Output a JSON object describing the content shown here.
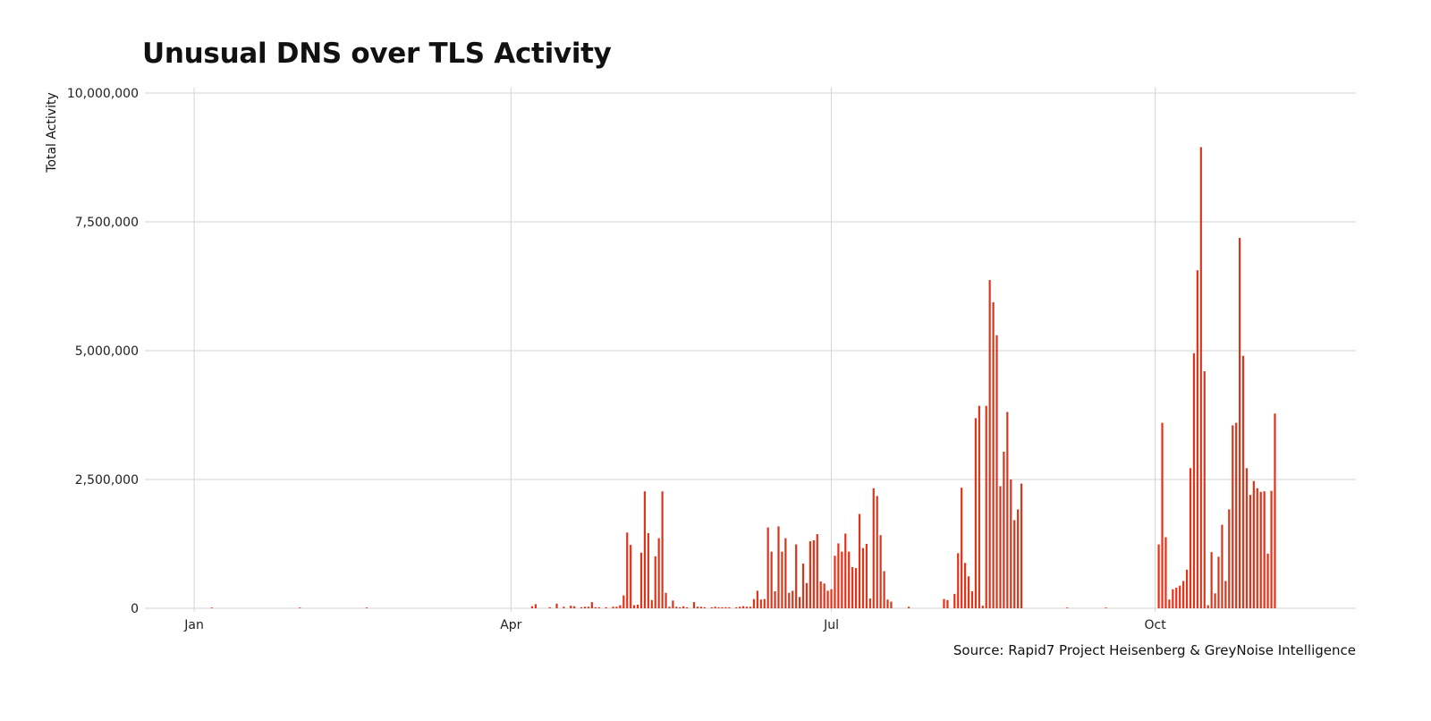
{
  "chart_data": {
    "type": "bar",
    "title": "Unusual DNS over TLS Activity",
    "ylabel": "Total Activity",
    "xlabel": "",
    "source": "Source: Rapid7 Project Heisenberg & GreyNoise Intelligence",
    "ylim": [
      0,
      10000000
    ],
    "yticks": [
      0,
      2500000,
      5000000,
      7500000,
      10000000
    ],
    "ytick_labels": [
      "0",
      "2,500,000",
      "5,000,000",
      "7,500,000",
      "10,000,000"
    ],
    "x_ticks": [
      {
        "label": "Jan",
        "day": 1
      },
      {
        "label": "Apr",
        "day": 91
      },
      {
        "label": "Jul",
        "day": 182
      },
      {
        "label": "Oct",
        "day": 274
      }
    ],
    "xlim_days": [
      -13,
      331
    ],
    "grid": true,
    "color": "#e0331a",
    "series": [
      {
        "points": [
          [
            6,
            4000
          ],
          [
            31,
            4000
          ],
          [
            50,
            4000
          ],
          [
            97,
            40000
          ],
          [
            98,
            80000
          ],
          [
            102,
            20000
          ],
          [
            104,
            90000
          ],
          [
            106,
            30000
          ],
          [
            108,
            50000
          ],
          [
            109,
            40000
          ],
          [
            111,
            20000
          ],
          [
            112,
            30000
          ],
          [
            113,
            30000
          ],
          [
            114,
            120000
          ],
          [
            115,
            20000
          ],
          [
            116,
            20000
          ],
          [
            118,
            20000
          ],
          [
            120,
            30000
          ],
          [
            121,
            30000
          ],
          [
            122,
            60000
          ],
          [
            123,
            250000
          ],
          [
            124,
            1470000
          ],
          [
            125,
            1230000
          ],
          [
            126,
            60000
          ],
          [
            127,
            70000
          ],
          [
            128,
            1080000
          ],
          [
            129,
            2270000
          ],
          [
            130,
            1460000
          ],
          [
            131,
            160000
          ],
          [
            132,
            1010000
          ],
          [
            133,
            1360000
          ],
          [
            134,
            2270000
          ],
          [
            135,
            300000
          ],
          [
            136,
            30000
          ],
          [
            137,
            150000
          ],
          [
            138,
            30000
          ],
          [
            139,
            20000
          ],
          [
            140,
            40000
          ],
          [
            141,
            20000
          ],
          [
            143,
            120000
          ],
          [
            144,
            30000
          ],
          [
            145,
            30000
          ],
          [
            146,
            20000
          ],
          [
            148,
            20000
          ],
          [
            149,
            30000
          ],
          [
            150,
            20000
          ],
          [
            151,
            20000
          ],
          [
            152,
            20000
          ],
          [
            153,
            20000
          ],
          [
            155,
            20000
          ],
          [
            156,
            30000
          ],
          [
            157,
            40000
          ],
          [
            158,
            30000
          ],
          [
            159,
            30000
          ],
          [
            160,
            180000
          ],
          [
            161,
            340000
          ],
          [
            162,
            170000
          ],
          [
            163,
            180000
          ],
          [
            164,
            1570000
          ],
          [
            165,
            1100000
          ],
          [
            166,
            330000
          ],
          [
            167,
            1590000
          ],
          [
            168,
            1100000
          ],
          [
            169,
            1360000
          ],
          [
            170,
            300000
          ],
          [
            171,
            340000
          ],
          [
            172,
            1240000
          ],
          [
            173,
            220000
          ],
          [
            174,
            870000
          ],
          [
            175,
            490000
          ],
          [
            176,
            1300000
          ],
          [
            177,
            1320000
          ],
          [
            178,
            1440000
          ],
          [
            179,
            520000
          ],
          [
            180,
            480000
          ],
          [
            181,
            340000
          ],
          [
            182,
            370000
          ],
          [
            183,
            1020000
          ],
          [
            184,
            1260000
          ],
          [
            185,
            1100000
          ],
          [
            186,
            1450000
          ],
          [
            187,
            1100000
          ],
          [
            188,
            800000
          ],
          [
            189,
            780000
          ],
          [
            190,
            1830000
          ],
          [
            191,
            1170000
          ],
          [
            192,
            1250000
          ],
          [
            193,
            190000
          ],
          [
            194,
            2330000
          ],
          [
            195,
            2180000
          ],
          [
            196,
            1420000
          ],
          [
            197,
            720000
          ],
          [
            198,
            170000
          ],
          [
            199,
            130000
          ],
          [
            204,
            30000
          ],
          [
            214,
            180000
          ],
          [
            215,
            160000
          ],
          [
            217,
            280000
          ],
          [
            218,
            1070000
          ],
          [
            219,
            2340000
          ],
          [
            220,
            880000
          ],
          [
            221,
            620000
          ],
          [
            222,
            330000
          ],
          [
            223,
            3690000
          ],
          [
            224,
            3930000
          ],
          [
            225,
            50000
          ],
          [
            226,
            3930000
          ],
          [
            227,
            6370000
          ],
          [
            228,
            5940000
          ],
          [
            229,
            5300000
          ],
          [
            230,
            2370000
          ],
          [
            231,
            3040000
          ],
          [
            232,
            3810000
          ],
          [
            233,
            2500000
          ],
          [
            234,
            1710000
          ],
          [
            235,
            1920000
          ],
          [
            236,
            2420000
          ],
          [
            249,
            4000
          ],
          [
            260,
            4000
          ],
          [
            275,
            1240000
          ],
          [
            276,
            3600000
          ],
          [
            277,
            1380000
          ],
          [
            278,
            170000
          ],
          [
            279,
            370000
          ],
          [
            280,
            400000
          ],
          [
            281,
            440000
          ],
          [
            282,
            530000
          ],
          [
            283,
            750000
          ],
          [
            284,
            2720000
          ],
          [
            285,
            4950000
          ],
          [
            286,
            6560000
          ],
          [
            287,
            8950000
          ],
          [
            288,
            4600000
          ],
          [
            289,
            60000
          ],
          [
            290,
            1090000
          ],
          [
            291,
            290000
          ],
          [
            292,
            1000000
          ],
          [
            293,
            1620000
          ],
          [
            294,
            530000
          ],
          [
            295,
            1920000
          ],
          [
            296,
            3550000
          ],
          [
            297,
            3600000
          ],
          [
            298,
            7190000
          ],
          [
            299,
            4900000
          ],
          [
            300,
            2720000
          ],
          [
            301,
            2200000
          ],
          [
            302,
            2470000
          ],
          [
            303,
            2330000
          ],
          [
            304,
            2260000
          ],
          [
            305,
            2270000
          ],
          [
            306,
            1060000
          ],
          [
            307,
            2280000
          ],
          [
            308,
            3780000
          ]
        ]
      }
    ]
  }
}
